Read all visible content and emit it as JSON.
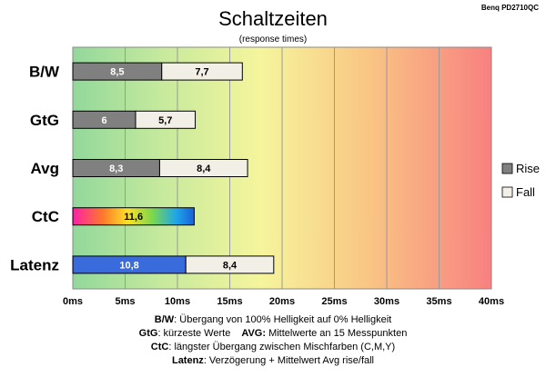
{
  "chart_data": {
    "type": "bar",
    "stacked": true,
    "orientation": "horizontal",
    "title": "Schaltzeiten",
    "subtitle": "(response times)",
    "brand": "Benq PD2710QC",
    "categories": [
      "B/W",
      "GtG",
      "Avg",
      "CtC",
      "Latenz"
    ],
    "series": [
      {
        "name": "Rise",
        "values": [
          8.5,
          6,
          8.3,
          11.6,
          10.8
        ],
        "labels": [
          "8,5",
          "6",
          "8,3",
          "11,6",
          "10,8"
        ]
      },
      {
        "name": "Fall",
        "values": [
          7.7,
          5.7,
          8.4,
          null,
          8.4
        ],
        "labels": [
          "7,7",
          "5,7",
          "8,4",
          "",
          "8,4"
        ]
      }
    ],
    "x_ticks": [
      "0ms",
      "5ms",
      "10ms",
      "15ms",
      "20ms",
      "25ms",
      "30ms",
      "35ms",
      "40ms"
    ],
    "xlim": [
      0,
      40
    ],
    "grid": true,
    "legend_position": "right",
    "colors": {
      "rise": "#808080",
      "fall": "#f2f0e6",
      "latenz_rise": "#3a6bdc",
      "background_gradient": [
        "#92d89b",
        "#f3f39a",
        "#f7a36f",
        "#f88080"
      ]
    }
  },
  "footer": {
    "line1": {
      "key": "B/W",
      "text": ":  Übergang von 100% Helligkeit auf 0% Helligkeit"
    },
    "line2": {
      "key1": "GtG",
      "text1": ": kürzeste  Werte",
      "key2": "AVG:",
      "text2": " Mittelwerte  an 15 Messpunkten"
    },
    "line3": {
      "key": "CtC",
      "text": ": längster Übergang  zwischen Mischfarben (C,M,Y)"
    },
    "line4": {
      "key": "Latenz",
      "text": ": Verzögerung  + Mittelwert  Avg rise/fall"
    }
  }
}
